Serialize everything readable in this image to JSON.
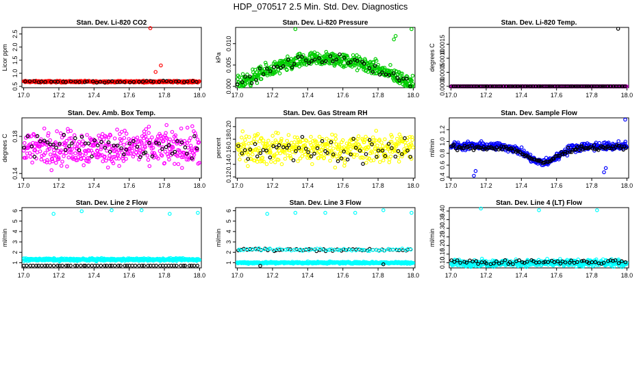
{
  "figure": {
    "title": "HDP_070517  2.5 Min. Std. Dev. Diagnostics"
  },
  "colors": {
    "background": "#ffffff",
    "axes": "#000000",
    "secondary_series": "#000000"
  },
  "chart_data": [
    {
      "type": "scatter",
      "title": "Stan. Dev. Li-820 CO2",
      "ylabel": "Licor ppm",
      "xlabel": "",
      "x_ticks": [
        "17.0",
        "17.2",
        "17.4",
        "17.6",
        "17.8",
        "18.0"
      ],
      "y_ticks": [
        "0.5",
        "1.0",
        "1.5",
        "2.0",
        "2.5"
      ],
      "y_tick_values": [
        0.5,
        1.0,
        1.5,
        2.0,
        2.5
      ],
      "xlim": [
        16.99,
        18.01
      ],
      "ylim": [
        0.45,
        2.75
      ],
      "series": [
        {
          "name": "main",
          "color": "#ff0000",
          "n": 420,
          "pattern": "flat",
          "base": 0.68,
          "noise": 0.05,
          "range": [
            0.6,
            0.78
          ]
        },
        {
          "name": "secondary",
          "color": "#000000",
          "n": 42,
          "pattern": "flat",
          "base": 0.68,
          "noise": 0.05,
          "range": [
            0.6,
            0.78
          ]
        }
      ],
      "outliers": [
        {
          "x": 17.72,
          "y": 2.72,
          "color": "#ff0000"
        },
        {
          "x": 17.78,
          "y": 1.3,
          "color": "#ff0000"
        },
        {
          "x": 17.75,
          "y": 1.05,
          "color": "#ff0000"
        }
      ]
    },
    {
      "type": "scatter",
      "title": "Stan. Dev. Li-820 Pressure",
      "ylabel": "kPa",
      "xlabel": "",
      "x_ticks": [
        "17.0",
        "17.2",
        "17.4",
        "17.6",
        "17.8",
        "18.0"
      ],
      "y_ticks": [
        "0.000",
        "0.005",
        "0.010"
      ],
      "y_tick_values": [
        0.0,
        0.005,
        0.01
      ],
      "xlim": [
        16.99,
        18.01
      ],
      "ylim": [
        -0.0003,
        0.0138
      ],
      "series": [
        {
          "name": "main",
          "color": "#00cc00",
          "n": 520,
          "pattern": "hump",
          "base": 0.0006,
          "amp": 0.0058,
          "noise": 0.0025,
          "range": [
            0.0,
            0.0105
          ]
        },
        {
          "name": "secondary",
          "color": "#000000",
          "n": 50,
          "pattern": "hump",
          "base": 0.0006,
          "amp": 0.0058,
          "noise": 0.0018,
          "range": [
            0.0,
            0.0095
          ]
        }
      ],
      "outliers": [
        {
          "x": 17.33,
          "y": 0.0134,
          "color": "#00cc00"
        },
        {
          "x": 17.99,
          "y": 0.0134,
          "color": "#00cc00"
        },
        {
          "x": 17.89,
          "y": 0.011,
          "color": "#00cc00"
        },
        {
          "x": 17.9,
          "y": 0.0118,
          "color": "#00cc00"
        }
      ]
    },
    {
      "type": "scatter",
      "title": "Stan. Dev. Li-820 Temp.",
      "ylabel": "degrees C",
      "xlabel": "",
      "x_ticks": [
        "17.0",
        "17.2",
        "17.4",
        "17.6",
        "17.8",
        "18.0"
      ],
      "y_ticks": [
        "0.0000",
        "0.0005",
        "0.0010",
        "0.0015"
      ],
      "y_tick_values": [
        0.0,
        0.0005,
        0.001,
        0.0015
      ],
      "xlim": [
        16.99,
        18.01
      ],
      "ylim": [
        -5e-05,
        0.0021
      ],
      "series": [
        {
          "name": "main",
          "color": "#ff00ff",
          "n": 420,
          "pattern": "flat",
          "base": 0.0,
          "noise": 0.0,
          "range": [
            0.0,
            0.0
          ]
        },
        {
          "name": "secondary",
          "color": "#000000",
          "n": 120,
          "pattern": "flat",
          "base": 0.0,
          "noise": 0.0,
          "range": [
            0.0,
            0.0
          ]
        }
      ],
      "outliers": [
        {
          "x": 17.95,
          "y": 0.00205,
          "color": "#000000"
        }
      ]
    },
    {
      "type": "scatter",
      "title": "Stan. Dev. Amb. Box Temp.",
      "ylabel": "degrees C",
      "xlabel": "",
      "x_ticks": [
        "17.0",
        "17.2",
        "17.4",
        "17.6",
        "17.8",
        "18.0"
      ],
      "y_ticks": [
        "0.14",
        "0.18"
      ],
      "y_tick_values": [
        0.14,
        0.18
      ],
      "xlim": [
        16.99,
        18.01
      ],
      "ylim": [
        0.135,
        0.2
      ],
      "series": [
        {
          "name": "main",
          "color": "#ff00ff",
          "n": 420,
          "pattern": "flat",
          "base": 0.168,
          "noise": 0.028,
          "range": [
            0.137,
            0.198
          ]
        },
        {
          "name": "secondary",
          "color": "#000000",
          "n": 55,
          "pattern": "flat",
          "base": 0.168,
          "noise": 0.024,
          "range": [
            0.14,
            0.195
          ]
        }
      ],
      "outliers": []
    },
    {
      "type": "scatter",
      "title": "Stan. Dev. Gas Stream RH",
      "ylabel": "percent",
      "xlabel": "",
      "x_ticks": [
        "17.0",
        "17.2",
        "17.4",
        "17.6",
        "17.8",
        "18.0"
      ],
      "y_ticks": [
        "0.12",
        "0.14",
        "0.16",
        "0.18",
        "0.20"
      ],
      "y_tick_values": [
        0.12,
        0.14,
        0.16,
        0.18,
        0.2
      ],
      "xlim": [
        16.99,
        18.01
      ],
      "ylim": [
        0.118,
        0.214
      ],
      "series": [
        {
          "name": "main",
          "color": "#ffff00",
          "n": 420,
          "pattern": "flat",
          "base": 0.165,
          "noise": 0.035,
          "range": [
            0.122,
            0.212
          ]
        },
        {
          "name": "secondary",
          "color": "#000000",
          "n": 55,
          "pattern": "flat",
          "base": 0.165,
          "noise": 0.03,
          "range": [
            0.13,
            0.205
          ]
        }
      ],
      "outliers": []
    },
    {
      "type": "scatter",
      "title": "Stan. Dev. Sample Flow",
      "ylabel": "ml/min",
      "xlabel": "",
      "x_ticks": [
        "17.0",
        "17.2",
        "17.4",
        "17.6",
        "17.8",
        "18.0"
      ],
      "y_ticks": [
        "0.4",
        "0.6",
        "0.8",
        "1.0",
        "1.2"
      ],
      "y_tick_values": [
        0.4,
        0.6,
        0.8,
        1.0,
        1.2
      ],
      "xlim": [
        16.99,
        18.01
      ],
      "ylim": [
        0.38,
        1.4
      ],
      "series": [
        {
          "name": "main",
          "color": "#0000ff",
          "n": 420,
          "pattern": "dip",
          "base": 0.92,
          "amp": -0.28,
          "noise": 0.1,
          "range": [
            0.6,
            1.08
          ]
        },
        {
          "name": "secondary",
          "color": "#000000",
          "n": 120,
          "pattern": "dip",
          "base": 0.9,
          "amp": -0.25,
          "noise": 0.06,
          "range": [
            0.62,
            1.02
          ]
        }
      ],
      "outliers": [
        {
          "x": 17.13,
          "y": 0.42,
          "color": "#0000ff"
        },
        {
          "x": 17.14,
          "y": 0.5,
          "color": "#0000ff"
        },
        {
          "x": 17.87,
          "y": 0.48,
          "color": "#0000ff"
        },
        {
          "x": 17.88,
          "y": 0.55,
          "color": "#0000ff"
        },
        {
          "x": 17.99,
          "y": 1.37,
          "color": "#0000ff"
        }
      ]
    },
    {
      "type": "scatter",
      "title": "Stan. Dev. Line 2 Flow",
      "ylabel": "ml/min",
      "xlabel": "",
      "x_ticks": [
        "17.0",
        "17.2",
        "17.4",
        "17.6",
        "17.8",
        "18.0"
      ],
      "y_ticks": [
        "1",
        "2",
        "3",
        "4",
        "5",
        "6"
      ],
      "y_tick_values": [
        1,
        2,
        3,
        4,
        5,
        6
      ],
      "xlim": [
        16.99,
        18.01
      ],
      "ylim": [
        0.5,
        6.3
      ],
      "series": [
        {
          "name": "main",
          "color": "#00ffff",
          "n": 480,
          "pattern": "flat",
          "base": 1.3,
          "noise": 0.18,
          "range": [
            1.05,
            1.6
          ]
        },
        {
          "name": "secondary",
          "color": "#000000",
          "n": 60,
          "pattern": "flat",
          "base": 0.72,
          "noise": 0.0,
          "range": [
            0.72,
            0.72
          ]
        }
      ],
      "outliers": [
        {
          "x": 17.17,
          "y": 5.7,
          "color": "#00ffff"
        },
        {
          "x": 17.33,
          "y": 5.95,
          "color": "#00ffff"
        },
        {
          "x": 17.5,
          "y": 6.05,
          "color": "#00ffff"
        },
        {
          "x": 17.67,
          "y": 6.05,
          "color": "#00ffff"
        },
        {
          "x": 17.83,
          "y": 5.7,
          "color": "#00ffff"
        },
        {
          "x": 17.99,
          "y": 5.8,
          "color": "#00ffff"
        }
      ]
    },
    {
      "type": "scatter",
      "title": "Stan. Dev. Line 3 Flow",
      "ylabel": "ml/min",
      "xlabel": "",
      "x_ticks": [
        "17.0",
        "17.2",
        "17.4",
        "17.6",
        "17.8",
        "18.0"
      ],
      "y_ticks": [
        "1",
        "2",
        "3",
        "4",
        "5",
        "6"
      ],
      "y_tick_values": [
        1,
        2,
        3,
        4,
        5,
        6
      ],
      "xlim": [
        16.99,
        18.01
      ],
      "ylim": [
        0.5,
        6.3
      ],
      "series": [
        {
          "name": "main",
          "color": "#00ffff",
          "n": 480,
          "pattern": "flat",
          "base": 1.0,
          "noise": 0.14,
          "range": [
            0.85,
            1.2
          ]
        },
        {
          "name": "secondary",
          "color": "#000000",
          "n": 60,
          "pattern": "flat",
          "base": 2.25,
          "noise": 0.18,
          "range": [
            2.05,
            2.45
          ]
        },
        {
          "name": "tertiary",
          "color": "#00ffff",
          "n": 60,
          "pattern": "flat",
          "base": 2.25,
          "noise": 0.18,
          "range": [
            2.05,
            2.45
          ]
        }
      ],
      "outliers": [
        {
          "x": 17.17,
          "y": 5.7,
          "color": "#00ffff"
        },
        {
          "x": 17.33,
          "y": 5.8,
          "color": "#00ffff"
        },
        {
          "x": 17.5,
          "y": 5.8,
          "color": "#00ffff"
        },
        {
          "x": 17.67,
          "y": 5.8,
          "color": "#00ffff"
        },
        {
          "x": 17.83,
          "y": 6.05,
          "color": "#00ffff"
        },
        {
          "x": 17.99,
          "y": 5.8,
          "color": "#00ffff"
        },
        {
          "x": 17.13,
          "y": 0.7,
          "color": "#000000"
        },
        {
          "x": 17.83,
          "y": 0.85,
          "color": "#000000"
        }
      ]
    },
    {
      "type": "scatter",
      "title": "Stan. Dev. Line 4 (LT) Flow",
      "ylabel": "ml/min",
      "xlabel": "",
      "x_ticks": [
        "17.0",
        "17.2",
        "17.4",
        "17.6",
        "17.8",
        "18.0"
      ],
      "y_ticks": [
        "0.10",
        "0.15",
        "0.20",
        "0.25",
        "0.30",
        "0.35",
        "0.40"
      ],
      "y_tick_values": [
        0.1,
        0.15,
        0.2,
        0.25,
        0.3,
        0.35,
        0.4
      ],
      "xlim": [
        16.99,
        18.01
      ],
      "ylim": [
        0.07,
        0.42
      ],
      "series": [
        {
          "name": "main",
          "color": "#00ffff",
          "n": 500,
          "pattern": "flat",
          "base": 0.098,
          "noise": 0.028,
          "range": [
            0.075,
            0.128
          ]
        },
        {
          "name": "secondary",
          "color": "#000000",
          "n": 60,
          "pattern": "flat",
          "base": 0.105,
          "noise": 0.02,
          "range": [
            0.088,
            0.125
          ]
        }
      ],
      "outliers": [
        {
          "x": 17.17,
          "y": 0.415,
          "color": "#00ffff"
        },
        {
          "x": 17.5,
          "y": 0.405,
          "color": "#00ffff"
        },
        {
          "x": 17.83,
          "y": 0.405,
          "color": "#00ffff"
        }
      ]
    }
  ]
}
